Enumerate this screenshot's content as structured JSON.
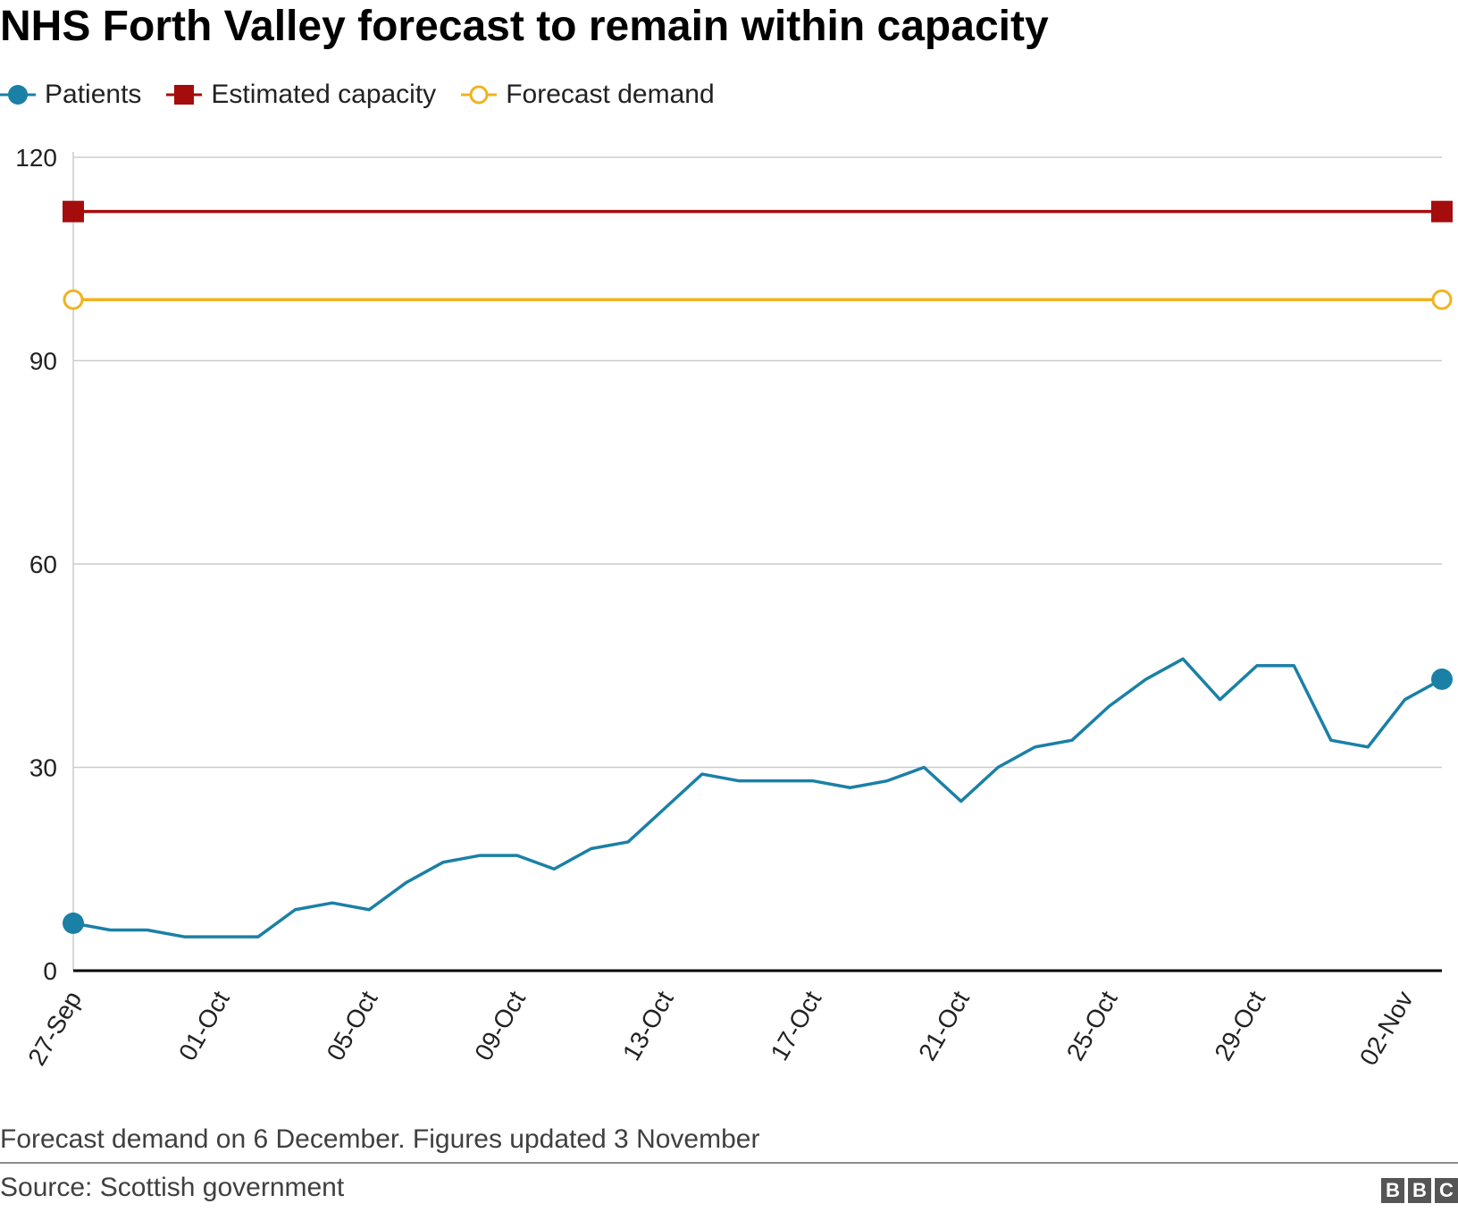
{
  "title": "NHS Forth Valley forecast to remain within capacity",
  "legend": [
    {
      "label": "Patients",
      "marker": "filled-circle",
      "color": "#1a80a6"
    },
    {
      "label": "Estimated capacity",
      "marker": "filled-square",
      "color": "#a50d0d"
    },
    {
      "label": "Forecast demand",
      "marker": "hollow-circle",
      "color": "#f0b320"
    }
  ],
  "footnote": "Forecast demand on 6 December. Figures updated 3 November",
  "source": "Source: Scottish government",
  "logo": [
    "B",
    "B",
    "C"
  ],
  "chart_data": {
    "type": "line",
    "title": "NHS Forth Valley forecast to remain within capacity",
    "xlabel": "",
    "ylabel": "",
    "ylim": [
      0,
      120
    ],
    "yticks": [
      0,
      30,
      60,
      90,
      120
    ],
    "grid": true,
    "legend_position": "top-left",
    "x": [
      "27-Sep",
      "28-Sep",
      "29-Sep",
      "30-Sep",
      "01-Oct",
      "02-Oct",
      "03-Oct",
      "04-Oct",
      "05-Oct",
      "06-Oct",
      "07-Oct",
      "08-Oct",
      "09-Oct",
      "10-Oct",
      "11-Oct",
      "12-Oct",
      "13-Oct",
      "14-Oct",
      "15-Oct",
      "16-Oct",
      "17-Oct",
      "18-Oct",
      "19-Oct",
      "20-Oct",
      "21-Oct",
      "22-Oct",
      "23-Oct",
      "24-Oct",
      "25-Oct",
      "26-Oct",
      "27-Oct",
      "28-Oct",
      "29-Oct",
      "30-Oct",
      "31-Oct",
      "01-Nov",
      "02-Nov",
      "03-Nov"
    ],
    "xticks": [
      "27-Sep",
      "01-Oct",
      "05-Oct",
      "09-Oct",
      "13-Oct",
      "17-Oct",
      "21-Oct",
      "25-Oct",
      "29-Oct",
      "02-Nov"
    ],
    "series": [
      {
        "name": "Patients",
        "color": "#1a80a6",
        "marker": "filled-circle-endpoints",
        "values": [
          7,
          6,
          6,
          5,
          5,
          5,
          9,
          10,
          9,
          13,
          16,
          17,
          17,
          15,
          18,
          19,
          24,
          29,
          28,
          28,
          28,
          27,
          28,
          30,
          25,
          30,
          33,
          34,
          39,
          43,
          46,
          40,
          45,
          45,
          34,
          33,
          40,
          43
        ]
      },
      {
        "name": "Estimated capacity",
        "color": "#a50d0d",
        "marker": "filled-square-endpoints",
        "x": [
          "27-Sep",
          "03-Nov"
        ],
        "values": [
          112,
          112
        ]
      },
      {
        "name": "Forecast demand",
        "color": "#f0b320",
        "marker": "hollow-circle-endpoints",
        "x": [
          "27-Sep",
          "03-Nov"
        ],
        "values": [
          99,
          99
        ]
      }
    ]
  }
}
